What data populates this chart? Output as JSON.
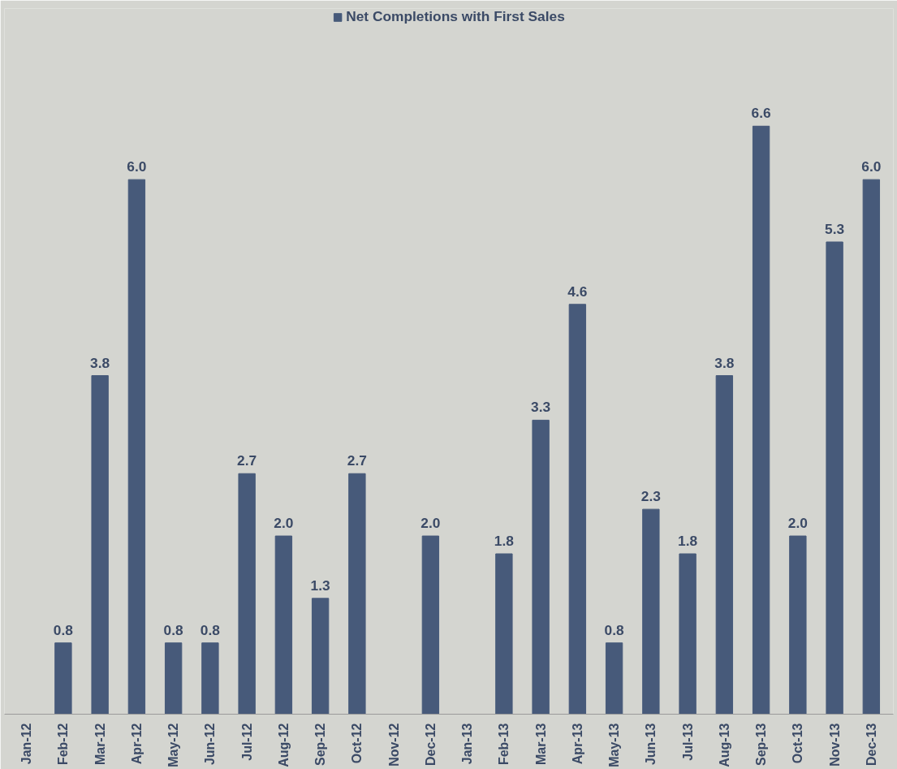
{
  "chart_data": {
    "type": "bar",
    "categories": [
      "Jan-12",
      "Feb-12",
      "Mar-12",
      "Apr-12",
      "May-12",
      "Jun-12",
      "Jul-12",
      "Aug-12",
      "Sep-12",
      "Oct-12",
      "Nov-12",
      "Dec-12",
      "Jan-13",
      "Feb-13",
      "Mar-13",
      "Apr-13",
      "May-13",
      "Jun-13",
      "Jul-13",
      "Aug-13",
      "Sep-13",
      "Oct-13",
      "Nov-13",
      "Dec-13"
    ],
    "series": [
      {
        "name": "Net Completions with First Sales",
        "color": "#475a7a",
        "values": [
          null,
          0.8,
          3.8,
          6.0,
          0.8,
          0.8,
          2.7,
          2.0,
          1.3,
          2.7,
          null,
          2.0,
          null,
          1.8,
          3.3,
          4.6,
          0.8,
          2.3,
          1.8,
          3.8,
          6.6,
          2.0,
          5.3,
          6.0
        ],
        "value_labels": [
          null,
          "0.8",
          "3.8",
          "6.0",
          "0.8",
          "0.8",
          "2.7",
          "2.0",
          "1.3",
          "2.7",
          null,
          "2.0",
          null,
          "1.8",
          "3.3",
          "4.6",
          "0.8",
          "2.3",
          "1.8",
          "3.8",
          "6.6",
          "2.0",
          "5.3",
          "6.0"
        ]
      }
    ],
    "legend": "top",
    "grid": false
  }
}
